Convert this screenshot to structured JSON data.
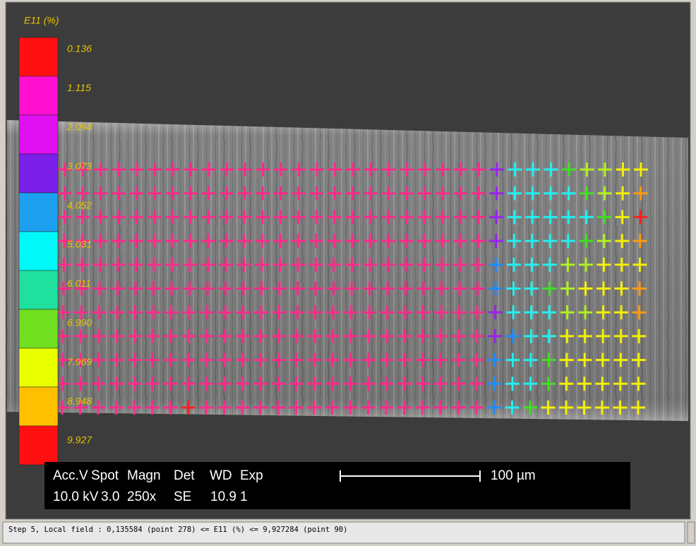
{
  "legend": {
    "title": "E11 (%)",
    "labels": [
      "0.136",
      "1.115",
      "2.094",
      "3.073",
      "4.052",
      "5.031",
      "6.011",
      "6.990",
      "7.969",
      "8.948",
      "9.927"
    ],
    "colors": [
      "#ff1010",
      "#ff10d0",
      "#e010f0",
      "#7a20e8",
      "#1ea0f0",
      "#00f8f8",
      "#20e0a0",
      "#70e020",
      "#e8ff00",
      "#ffc000",
      "#ff1010"
    ]
  },
  "markers": {
    "palette": [
      "#ff2a8a",
      "#9a22ee",
      "#22f0f0",
      "#1e8cff",
      "#40e020",
      "#b0f020",
      "#f4f000",
      "#ff9a10",
      "#ff2020"
    ],
    "rows": [
      [
        0,
        0,
        0,
        0,
        0,
        0,
        0,
        0,
        0,
        0,
        0,
        0,
        0,
        0,
        0,
        0,
        0,
        0,
        0,
        0,
        0,
        0,
        0,
        0,
        1,
        2,
        2,
        2,
        4,
        5,
        5,
        6,
        6
      ],
      [
        0,
        0,
        0,
        0,
        0,
        0,
        0,
        0,
        0,
        0,
        0,
        0,
        0,
        0,
        0,
        0,
        0,
        0,
        0,
        0,
        0,
        0,
        0,
        0,
        1,
        2,
        2,
        2,
        2,
        4,
        5,
        6,
        7
      ],
      [
        0,
        0,
        0,
        0,
        0,
        0,
        0,
        0,
        0,
        0,
        0,
        0,
        0,
        0,
        0,
        0,
        0,
        0,
        0,
        0,
        0,
        0,
        0,
        0,
        1,
        2,
        2,
        2,
        2,
        2,
        4,
        6,
        8
      ],
      [
        0,
        0,
        0,
        0,
        0,
        0,
        0,
        0,
        0,
        0,
        0,
        0,
        0,
        0,
        0,
        0,
        0,
        0,
        0,
        0,
        0,
        0,
        0,
        0,
        1,
        2,
        2,
        2,
        2,
        4,
        5,
        6,
        7
      ],
      [
        0,
        0,
        0,
        0,
        0,
        0,
        0,
        0,
        0,
        0,
        0,
        0,
        0,
        0,
        0,
        0,
        0,
        0,
        0,
        0,
        0,
        0,
        0,
        0,
        3,
        2,
        2,
        2,
        5,
        5,
        6,
        6,
        6
      ],
      [
        0,
        0,
        0,
        0,
        0,
        0,
        0,
        0,
        0,
        0,
        0,
        0,
        0,
        0,
        0,
        0,
        0,
        0,
        0,
        0,
        0,
        0,
        0,
        0,
        3,
        2,
        2,
        4,
        5,
        6,
        6,
        6,
        7
      ],
      [
        0,
        0,
        0,
        0,
        0,
        0,
        0,
        0,
        0,
        0,
        0,
        0,
        0,
        0,
        0,
        0,
        0,
        0,
        0,
        0,
        0,
        0,
        0,
        0,
        1,
        2,
        2,
        2,
        5,
        5,
        6,
        6,
        7
      ],
      [
        0,
        0,
        0,
        0,
        0,
        0,
        0,
        0,
        0,
        0,
        0,
        0,
        0,
        0,
        0,
        0,
        0,
        0,
        0,
        0,
        0,
        0,
        0,
        0,
        1,
        3,
        2,
        2,
        6,
        6,
        6,
        6,
        6
      ],
      [
        0,
        0,
        0,
        0,
        0,
        0,
        0,
        0,
        0,
        0,
        0,
        0,
        0,
        0,
        0,
        0,
        0,
        0,
        0,
        0,
        0,
        0,
        0,
        0,
        3,
        2,
        2,
        4,
        6,
        6,
        6,
        6,
        6
      ],
      [
        0,
        0,
        0,
        0,
        0,
        0,
        0,
        0,
        0,
        0,
        0,
        0,
        0,
        0,
        0,
        0,
        0,
        0,
        0,
        0,
        0,
        0,
        0,
        0,
        3,
        2,
        2,
        4,
        6,
        6,
        6,
        6,
        6
      ],
      [
        0,
        0,
        0,
        0,
        0,
        0,
        0,
        8,
        0,
        0,
        0,
        0,
        0,
        0,
        0,
        0,
        0,
        0,
        0,
        0,
        0,
        0,
        0,
        0,
        3,
        2,
        4,
        6,
        6,
        6,
        6,
        6,
        6
      ]
    ]
  },
  "info": {
    "headers": [
      "Acc.V",
      "Spot",
      "Magn",
      "Det",
      "WD",
      "Exp"
    ],
    "values": [
      "10.0 kV",
      "3.0",
      "250x",
      "SE",
      "10.9",
      "1"
    ],
    "scale": "100 µm"
  },
  "status": "Step 5, Local field : 0,135584 (point 278) <= E11 (%) <= 9,927284 (point 90)"
}
